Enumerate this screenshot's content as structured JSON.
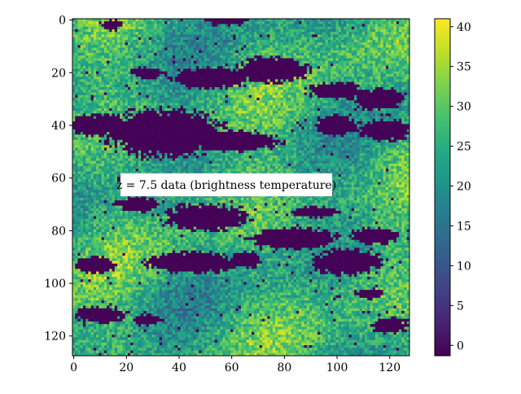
{
  "chart_data": {
    "type": "heatmap",
    "title": "",
    "annotation": "z = 7.5 data (brightness temperature)",
    "xlabel": "",
    "ylabel": "",
    "grid_size": [
      128,
      128
    ],
    "xlim": [
      -0.5,
      127.5
    ],
    "ylim": [
      127.5,
      -0.5
    ],
    "x_ticks": [
      0,
      20,
      40,
      60,
      80,
      100,
      120
    ],
    "y_ticks": [
      0,
      20,
      40,
      60,
      80,
      100,
      120
    ],
    "colorbar": {
      "colormap": "viridis",
      "range": [
        -1.3,
        41.0
      ],
      "ticks": [
        0,
        5,
        10,
        15,
        20,
        25,
        30,
        35,
        40
      ]
    },
    "background_value": 25,
    "cold_value": -1,
    "cold_regions": [
      {
        "cx": 14,
        "cy": 2,
        "rx": 4,
        "ry": 2
      },
      {
        "cx": 58,
        "cy": 0,
        "rx": 8,
        "ry": 2
      },
      {
        "cx": 28,
        "cy": 20,
        "rx": 6,
        "ry": 2
      },
      {
        "cx": 52,
        "cy": 22,
        "rx": 15,
        "ry": 4
      },
      {
        "cx": 75,
        "cy": 19,
        "rx": 14,
        "ry": 5
      },
      {
        "cx": 100,
        "cy": 27,
        "rx": 11,
        "ry": 3
      },
      {
        "cx": 116,
        "cy": 30,
        "rx": 10,
        "ry": 4
      },
      {
        "cx": 10,
        "cy": 40,
        "rx": 12,
        "ry": 4
      },
      {
        "cx": 34,
        "cy": 43,
        "rx": 22,
        "ry": 9
      },
      {
        "cx": 60,
        "cy": 46,
        "rx": 18,
        "ry": 4
      },
      {
        "cx": 100,
        "cy": 40,
        "rx": 8,
        "ry": 4
      },
      {
        "cx": 118,
        "cy": 42,
        "rx": 10,
        "ry": 4
      },
      {
        "cx": 20,
        "cy": 60,
        "rx": 4,
        "ry": 2
      },
      {
        "cx": 58,
        "cy": 63,
        "rx": 6,
        "ry": 2
      },
      {
        "cx": 90,
        "cy": 64,
        "rx": 6,
        "ry": 2
      },
      {
        "cx": 24,
        "cy": 70,
        "rx": 8,
        "ry": 3
      },
      {
        "cx": 50,
        "cy": 75,
        "rx": 16,
        "ry": 5
      },
      {
        "cx": 92,
        "cy": 73,
        "rx": 9,
        "ry": 2
      },
      {
        "cx": 84,
        "cy": 83,
        "rx": 16,
        "ry": 4
      },
      {
        "cx": 114,
        "cy": 82,
        "rx": 9,
        "ry": 3
      },
      {
        "cx": 46,
        "cy": 92,
        "rx": 18,
        "ry": 4
      },
      {
        "cx": 8,
        "cy": 93,
        "rx": 8,
        "ry": 3
      },
      {
        "cx": 104,
        "cy": 92,
        "rx": 13,
        "ry": 5
      },
      {
        "cx": 65,
        "cy": 91,
        "rx": 6,
        "ry": 3
      },
      {
        "cx": 10,
        "cy": 112,
        "rx": 10,
        "ry": 3
      },
      {
        "cx": 28,
        "cy": 114,
        "rx": 6,
        "ry": 2
      },
      {
        "cx": 120,
        "cy": 116,
        "rx": 7,
        "ry": 3
      },
      {
        "cx": 112,
        "cy": 104,
        "rx": 5,
        "ry": 2
      }
    ]
  }
}
